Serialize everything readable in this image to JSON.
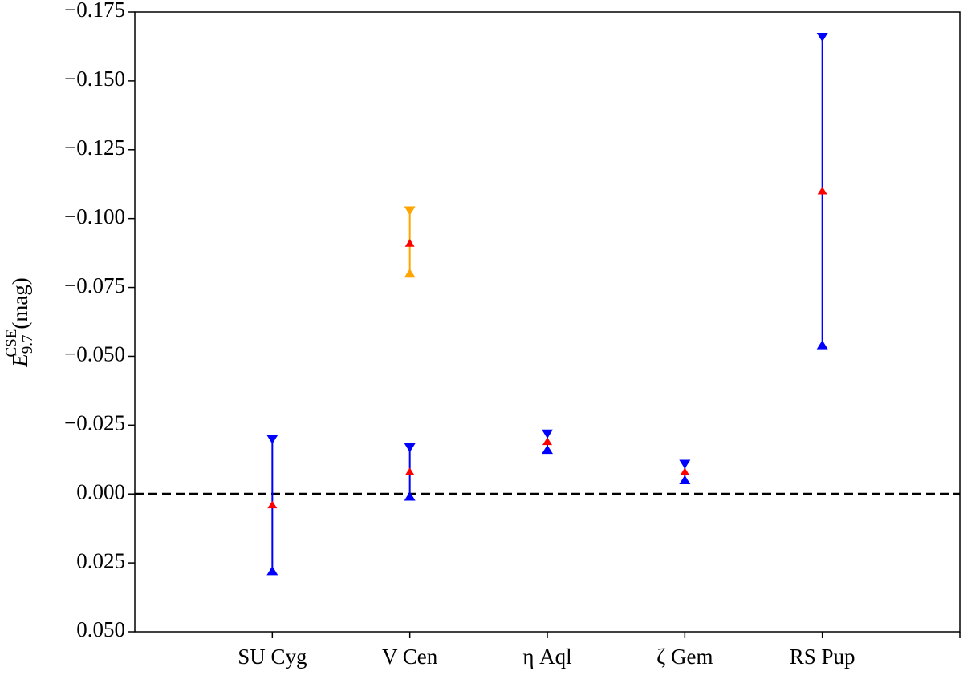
{
  "chart_data": {
    "type": "range",
    "ylabel": {
      "base": "E",
      "sub": "9.7",
      "sup": "CSE",
      "unit": "(mag)"
    },
    "categories": [
      "SU Cyg",
      "V Cen",
      "η Aql",
      "ζ Gem",
      "RS Pup"
    ],
    "xlim": [
      0,
      6
    ],
    "ylim": [
      0.05,
      -0.175
    ],
    "inverted": true,
    "yticks": [
      {
        "value": -0.175,
        "label": "−0.175"
      },
      {
        "value": -0.15,
        "label": "−0.150"
      },
      {
        "value": -0.125,
        "label": "−0.125"
      },
      {
        "value": -0.1,
        "label": "−0.100"
      },
      {
        "value": -0.075,
        "label": "−0.075"
      },
      {
        "value": -0.05,
        "label": "−0.050"
      },
      {
        "value": -0.025,
        "label": "−0.025"
      },
      {
        "value": 0,
        "label": "0.000"
      },
      {
        "value": 0.025,
        "label": "0.025"
      },
      {
        "value": 0.05,
        "label": "0.050"
      }
    ],
    "reference_line": 0,
    "marker_color": "#ff0000",
    "series": [
      {
        "color": "#0000ff",
        "values": [
          0.004,
          -0.008,
          -0.019,
          -0.008,
          -0.11
        ],
        "range_min": [
          -0.02,
          -0.017,
          -0.022,
          -0.011,
          -0.166
        ],
        "range_max": [
          0.028,
          0.001,
          -0.016,
          -0.005,
          -0.054
        ]
      },
      {
        "color": "#ffa500",
        "values": [
          null,
          -0.091,
          null,
          null,
          null
        ],
        "range_min": [
          null,
          -0.103,
          null,
          null,
          null
        ],
        "range_max": [
          null,
          -0.08,
          null,
          null,
          null
        ]
      }
    ]
  }
}
